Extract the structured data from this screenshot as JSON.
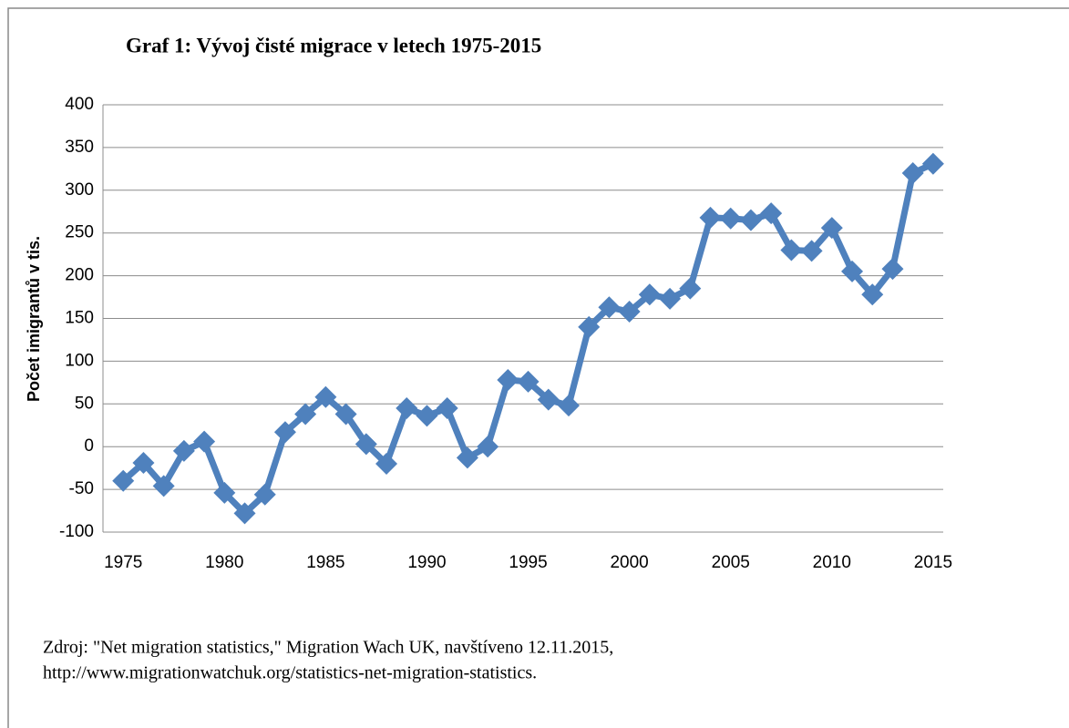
{
  "chart_data": {
    "type": "line",
    "title": "Graf 1: Vývoj čisté migrace v letech 1975-2015",
    "ylabel": "Počet imigrantů v tis.",
    "x": [
      1975,
      1976,
      1977,
      1978,
      1979,
      1980,
      1981,
      1982,
      1983,
      1984,
      1985,
      1986,
      1987,
      1988,
      1989,
      1990,
      1991,
      1992,
      1993,
      1994,
      1995,
      1996,
      1997,
      1998,
      1999,
      2000,
      2001,
      2002,
      2003,
      2004,
      2005,
      2006,
      2007,
      2008,
      2009,
      2010,
      2011,
      2012,
      2013,
      2014,
      2015
    ],
    "values": [
      -40,
      -19,
      -46,
      -5,
      6,
      -54,
      -78,
      -56,
      17,
      38,
      58,
      38,
      3,
      -20,
      45,
      36,
      45,
      -13,
      0,
      78,
      76,
      55,
      48,
      140,
      163,
      158,
      178,
      173,
      185,
      268,
      267,
      265,
      273,
      230,
      229,
      256,
      205,
      178,
      208,
      320,
      331
    ],
    "color": "#4f81bd",
    "xlim": [
      1974,
      2015.5
    ],
    "xticks": [
      1975,
      1980,
      1985,
      1990,
      1995,
      2000,
      2005,
      2010,
      2015
    ],
    "ylim": [
      -100,
      400
    ],
    "yticks": [
      -100,
      -50,
      0,
      50,
      100,
      150,
      200,
      250,
      300,
      350,
      400
    ],
    "grid": true,
    "source": [
      "Zdroj: \"Net migration statistics,\" Migration Wach UK, navštíveno 12.11.2015,",
      "http://www.migrationwatchuk.org/statistics-net-migration-statistics."
    ]
  }
}
